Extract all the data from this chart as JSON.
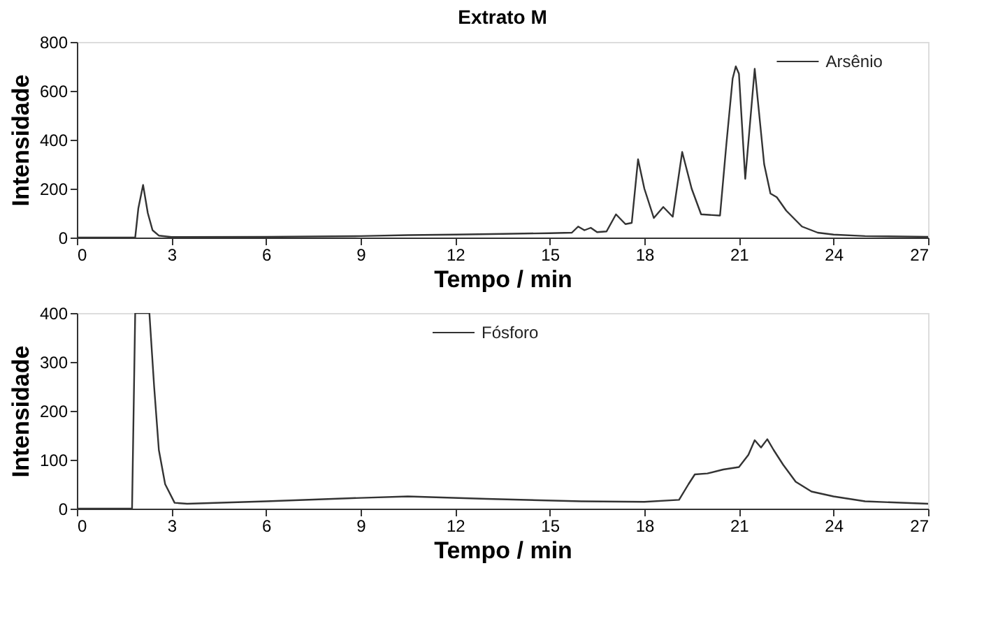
{
  "chart_data": [
    {
      "type": "line",
      "title": "Extrato M",
      "xlabel": "Tempo / min",
      "ylabel": "Intensidade",
      "xlim": [
        0,
        27
      ],
      "ylim": [
        0,
        800
      ],
      "xticks": [
        0,
        3,
        6,
        9,
        12,
        15,
        18,
        21,
        24,
        27
      ],
      "yticks": [
        0,
        200,
        400,
        600,
        800
      ],
      "legend": "top right",
      "grid": false,
      "series": [
        {
          "name": "Arsênio",
          "color": "#333333",
          "x": [
            0,
            1.85,
            1.95,
            2.1,
            2.25,
            2.4,
            2.6,
            3,
            6,
            9,
            10.5,
            12,
            13.5,
            15,
            15.7,
            15.9,
            16.1,
            16.3,
            16.5,
            16.8,
            17.1,
            17.4,
            17.6,
            17.8,
            18.0,
            18.3,
            18.6,
            18.9,
            19.2,
            19.5,
            19.8,
            20.4,
            20.6,
            20.8,
            20.9,
            21.0,
            21.2,
            21.5,
            21.8,
            22.0,
            22.2,
            22.5,
            23,
            23.5,
            24,
            25,
            27
          ],
          "values": [
            0,
            0,
            120,
            215,
            100,
            30,
            8,
            2,
            3,
            6,
            10,
            12,
            15,
            18,
            20,
            45,
            30,
            40,
            22,
            25,
            95,
            55,
            60,
            320,
            200,
            80,
            125,
            85,
            350,
            200,
            95,
            90,
            380,
            650,
            700,
            670,
            240,
            690,
            300,
            180,
            165,
            110,
            45,
            20,
            12,
            6,
            3
          ]
        }
      ]
    },
    {
      "type": "line",
      "xlabel": "Tempo / min",
      "ylabel": "Intensidade",
      "xlim": [
        0,
        27
      ],
      "ylim": [
        0,
        400
      ],
      "xticks": [
        0,
        3,
        6,
        9,
        12,
        15,
        18,
        21,
        24,
        27
      ],
      "yticks": [
        0,
        100,
        200,
        300,
        400
      ],
      "legend": "top",
      "grid": false,
      "series": [
        {
          "name": "Fósforo",
          "color": "#333333",
          "x": [
            0,
            1.75,
            1.85,
            2.3,
            2.45,
            2.6,
            2.8,
            3.1,
            3.5,
            6,
            9,
            10.5,
            13,
            16,
            18,
            19.1,
            19.4,
            19.6,
            20,
            20.5,
            21,
            21.3,
            21.5,
            21.7,
            21.9,
            22.1,
            22.4,
            22.8,
            23.3,
            24,
            25,
            27
          ],
          "values": [
            0,
            0,
            400,
            400,
            250,
            120,
            50,
            12,
            10,
            15,
            22,
            25,
            20,
            15,
            14,
            18,
            50,
            70,
            72,
            80,
            85,
            110,
            140,
            125,
            142,
            120,
            90,
            55,
            35,
            25,
            15,
            10
          ]
        }
      ]
    }
  ]
}
